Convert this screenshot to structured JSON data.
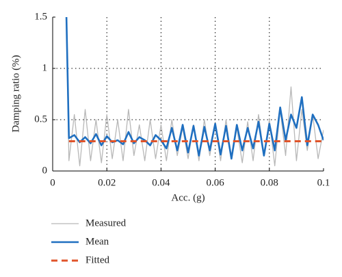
{
  "chart_data": {
    "type": "line",
    "x_label": "Acc. (g)",
    "y_label": "Damping ratio (%)",
    "xlim": [
      0,
      0.1
    ],
    "ylim": [
      0,
      1.5
    ],
    "xticks": [
      0,
      0.02,
      0.04,
      0.06,
      0.08,
      0.1
    ],
    "yticks": [
      0,
      0.5,
      1,
      1.5
    ],
    "grid": true,
    "x": [
      0.005,
      0.006,
      0.008,
      0.01,
      0.012,
      0.014,
      0.016,
      0.018,
      0.02,
      0.022,
      0.024,
      0.026,
      0.028,
      0.03,
      0.032,
      0.034,
      0.036,
      0.038,
      0.04,
      0.042,
      0.044,
      0.046,
      0.048,
      0.05,
      0.052,
      0.054,
      0.056,
      0.058,
      0.06,
      0.062,
      0.064,
      0.066,
      0.068,
      0.07,
      0.072,
      0.074,
      0.076,
      0.078,
      0.08,
      0.082,
      0.084,
      0.086,
      0.088,
      0.09,
      0.092,
      0.094,
      0.096,
      0.098,
      0.1
    ],
    "series": [
      {
        "name": "Measured",
        "color": "#b8b8b8",
        "dashed": false,
        "values": [
          1.6,
          0.1,
          0.55,
          0.05,
          0.6,
          0.1,
          0.5,
          0.08,
          0.55,
          0.12,
          0.5,
          0.1,
          0.6,
          0.15,
          0.45,
          0.1,
          0.5,
          0.12,
          0.45,
          0.1,
          0.5,
          0.15,
          0.42,
          0.12,
          0.45,
          0.1,
          0.5,
          0.15,
          0.45,
          0.1,
          0.5,
          0.12,
          0.42,
          0.08,
          0.48,
          0.1,
          0.55,
          0.15,
          0.5,
          0.05,
          0.6,
          0.15,
          0.82,
          0.1,
          0.6,
          0.2,
          0.55,
          0.12,
          0.4
        ]
      },
      {
        "name": "Mean",
        "color": "#1f6fc0",
        "dashed": false,
        "values": [
          1.6,
          0.32,
          0.35,
          0.28,
          0.33,
          0.27,
          0.36,
          0.25,
          0.34,
          0.28,
          0.3,
          0.26,
          0.38,
          0.27,
          0.33,
          0.3,
          0.25,
          0.35,
          0.3,
          0.22,
          0.42,
          0.2,
          0.45,
          0.18,
          0.44,
          0.15,
          0.43,
          0.2,
          0.46,
          0.16,
          0.44,
          0.12,
          0.45,
          0.2,
          0.42,
          0.22,
          0.48,
          0.15,
          0.46,
          0.2,
          0.62,
          0.3,
          0.55,
          0.42,
          0.72,
          0.25,
          0.55,
          0.45,
          0.3
        ]
      },
      {
        "name": "Fitted",
        "color": "#e0542a",
        "dashed": true,
        "values": [
          null,
          0.29,
          0.29,
          0.29,
          0.29,
          0.29,
          0.29,
          0.29,
          0.29,
          0.29,
          0.29,
          0.29,
          0.29,
          0.29,
          0.29,
          0.29,
          0.29,
          0.29,
          0.29,
          0.29,
          0.29,
          0.29,
          0.29,
          0.29,
          0.29,
          0.29,
          0.29,
          0.29,
          0.29,
          0.29,
          0.29,
          0.29,
          0.29,
          0.29,
          0.29,
          0.29,
          0.29,
          0.29,
          0.29,
          0.29,
          0.29,
          0.29,
          0.29,
          0.29,
          0.29,
          0.29,
          0.29,
          0.29,
          0.29
        ]
      }
    ]
  }
}
